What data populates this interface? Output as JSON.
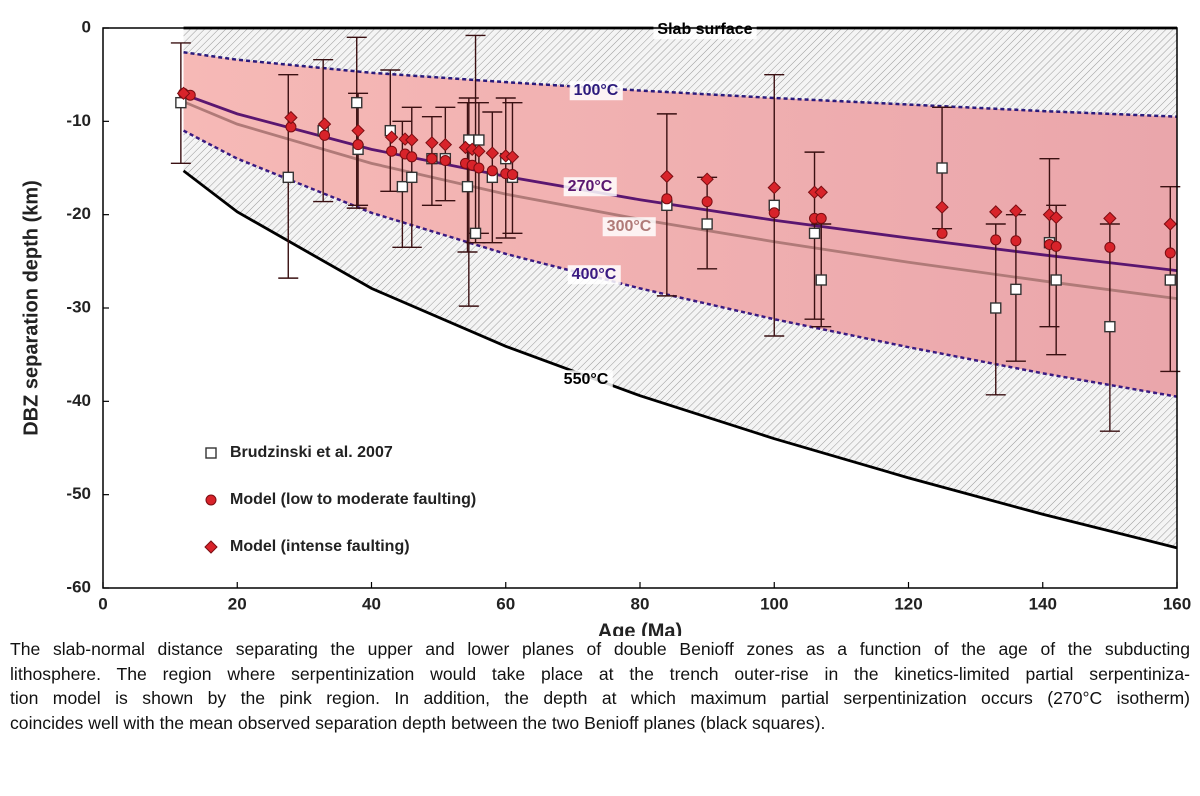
{
  "chart_data": {
    "type": "scatter",
    "xlabel": "Age (Ma)",
    "ylabel": "DBZ separation depth (km)",
    "xlim": [
      0,
      160
    ],
    "xticks": [
      0,
      20,
      40,
      60,
      80,
      100,
      120,
      140,
      160
    ],
    "ylim": [
      -60,
      0
    ],
    "yticks": [
      0,
      -10,
      -20,
      -30,
      -40,
      -50,
      -60
    ],
    "legend": "lower left",
    "curves": [
      {
        "name": "Slab surface",
        "color": "#000000",
        "dashed": false,
        "x": [
          12,
          160
        ],
        "values": [
          0,
          0
        ]
      },
      {
        "name": "100°C",
        "color": "#2b1a7c",
        "dashed": true,
        "x": [
          12,
          20,
          40,
          60,
          80,
          100,
          120,
          140,
          160
        ],
        "values": [
          -2.6,
          -3.4,
          -4.8,
          -5.8,
          -6.7,
          -7.5,
          -8.2,
          -8.9,
          -9.5
        ]
      },
      {
        "name": "270°C",
        "color": "#5a1670",
        "dashed": false,
        "x": [
          12,
          20,
          40,
          60,
          80,
          100,
          120,
          140,
          160
        ],
        "values": [
          -7.1,
          -9.2,
          -13,
          -15.9,
          -18.4,
          -20.6,
          -22.5,
          -24.3,
          -26
        ]
      },
      {
        "name": "300°C",
        "color": "#b07a78",
        "dashed": false,
        "x": [
          12,
          20,
          40,
          60,
          80,
          100,
          120,
          140,
          160
        ],
        "values": [
          -7.9,
          -10.3,
          -14.5,
          -17.8,
          -20.5,
          -22.9,
          -25.1,
          -27.1,
          -29
        ]
      },
      {
        "name": "400°C",
        "color": "#3a1a82",
        "dashed": true,
        "x": [
          12,
          20,
          40,
          60,
          80,
          100,
          120,
          140,
          160
        ],
        "values": [
          -11,
          -14,
          -19.8,
          -24.2,
          -27.9,
          -31.2,
          -34.2,
          -37,
          -39.5
        ]
      },
      {
        "name": "550°C",
        "color": "#000000",
        "dashed": false,
        "x": [
          12,
          20,
          40,
          60,
          80,
          100,
          120,
          140,
          160
        ],
        "values": [
          -15.3,
          -19.7,
          -27.9,
          -34.1,
          -39.4,
          -44,
          -48.2,
          -52.1,
          -55.7
        ]
      }
    ],
    "series": [
      {
        "name": "Brudzinski et al. 2007",
        "marker": "square",
        "color": "#ffffff",
        "x": [
          11.6,
          27.6,
          32.8,
          37.8,
          38,
          42.8,
          44.6,
          46,
          49,
          51,
          54.3,
          54.5,
          55.5,
          56,
          58,
          60,
          61,
          84,
          90,
          100,
          106,
          107,
          125,
          133,
          136,
          141,
          142,
          150,
          159
        ],
        "values": [
          -8,
          -16,
          -11,
          -8,
          -13,
          -11,
          -17,
          -16,
          -14,
          -14,
          -17,
          -12,
          -22,
          -12,
          -16,
          -14,
          -16,
          -19,
          -21,
          -19,
          -22,
          -27,
          -15,
          -30,
          -28,
          -23,
          -27,
          -32,
          -27
        ],
        "y_upper": [
          -1.6,
          -5,
          -3.4,
          -1,
          -7,
          -4.5,
          -10,
          -8.5,
          -9.5,
          -8.5,
          -8,
          -7.5,
          -0.8,
          -8,
          -9,
          -7.5,
          -8,
          -9.2,
          -16,
          -5,
          -13.3,
          -21,
          -8.5,
          -21,
          -20,
          -14,
          -19,
          -21,
          -17
        ],
        "y_lower": [
          -14.5,
          -26.8,
          -18.6,
          -19.3,
          -19,
          -17.5,
          -23.5,
          -23.5,
          -19,
          -18.5,
          -24,
          -29.8,
          -23,
          -22,
          -23,
          -22.5,
          -22,
          -28.7,
          -25.8,
          -33,
          -31.2,
          -32,
          -21.5,
          -39.3,
          -35.7,
          -32,
          -35,
          -43.2,
          -36.8
        ]
      },
      {
        "name": "Model (low to moderate faulting)",
        "marker": "circle",
        "color": "#d8232a",
        "x": [
          12,
          13,
          28,
          33,
          38,
          43,
          45,
          46,
          49,
          51,
          54,
          55,
          56,
          58,
          60,
          61,
          84,
          90,
          100,
          106,
          107,
          125,
          133,
          136,
          141,
          142,
          150,
          159
        ],
        "values": [
          -7,
          -7.2,
          -10.6,
          -11.5,
          -12.5,
          -13.2,
          -13.5,
          -13.8,
          -14,
          -14.2,
          -14.5,
          -14.7,
          -15,
          -15.3,
          -15.6,
          -15.7,
          -18.3,
          -18.6,
          -19.8,
          -20.4,
          -20.4,
          -22,
          -22.7,
          -22.8,
          -23.2,
          -23.4,
          -23.5,
          -24.1
        ]
      },
      {
        "name": "Model (intense faulting)",
        "marker": "diamond",
        "color": "#d8232a",
        "x": [
          12,
          28,
          33,
          38,
          43,
          45,
          46,
          49,
          51,
          54,
          55,
          56,
          58,
          60,
          61,
          84,
          90,
          100,
          106,
          107,
          125,
          133,
          136,
          141,
          142,
          150,
          159
        ],
        "values": [
          -7,
          -9.6,
          -10.3,
          -11,
          -11.7,
          -11.9,
          -12,
          -12.3,
          -12.5,
          -12.8,
          -13,
          -13.2,
          -13.4,
          -13.7,
          -13.8,
          -15.9,
          -16.2,
          -17.1,
          -17.6,
          -17.6,
          -19.2,
          -19.7,
          -19.6,
          -20,
          -20.3,
          -20.4,
          -21
        ]
      }
    ]
  },
  "caption": {
    "lines": [
      "The slab-normal distance separating the upper and lower planes of double Benioff zones as a function of the age of the subducting",
      "lithosphere. The region where serpentinization would take place at the trench outer-rise in the kinetics-limited partial serpentiniza-",
      "tion model is shown by the pink region. In addition, the depth at which maximum partial serpentinization occurs (270°C isotherm)",
      "coincides well with the mean observed separation depth between the two Benioff planes (black squares)."
    ]
  }
}
